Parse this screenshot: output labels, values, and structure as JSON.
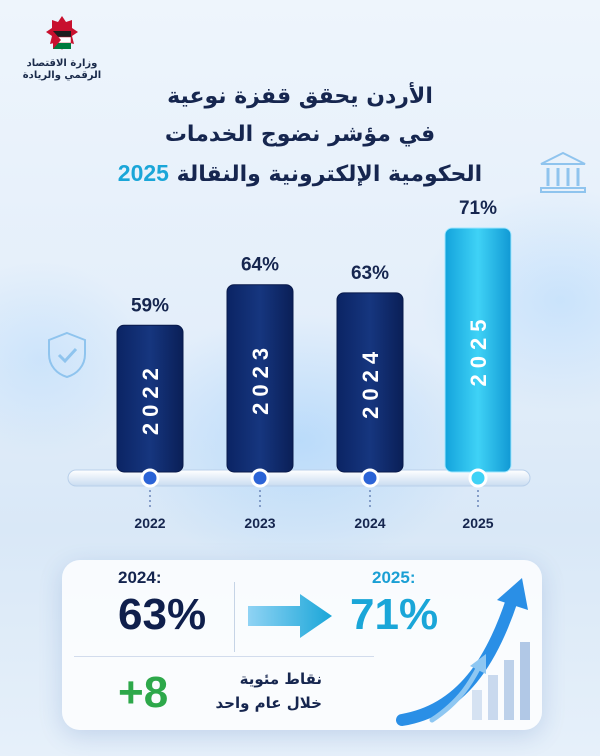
{
  "org": {
    "name_line1": "وزارة الاقتصاد",
    "name_line2": "الرقمي والريادة"
  },
  "title": {
    "line1": "الأردن يحقق قفزة نوعية",
    "line2": "في مؤشر نضوج الخدمات",
    "line3_text": "الحكومية الإلكترونية والنقالة",
    "line3_year": "2025"
  },
  "chart_data": {
    "type": "bar",
    "categories": [
      "2022",
      "2023",
      "2024",
      "2025"
    ],
    "values": [
      59,
      64,
      63,
      71
    ],
    "value_labels": [
      "59%",
      "64%",
      "63%",
      "71%"
    ],
    "bar_labels": [
      "2022",
      "2023",
      "2024",
      "2025"
    ],
    "highlight_category": "2025",
    "colors": {
      "bar": "#0e2a6b",
      "highlight": "#1fb8e8",
      "label": "#16264f"
    }
  },
  "summary": {
    "from_label": "2024:",
    "from_value": "63%",
    "to_label": "2025:",
    "to_value": "71%",
    "delta": "+8",
    "delta_text_line1": "نقاط مئوية",
    "delta_text_line2": "خلال عام واحد"
  },
  "icons": [
    "ministry-logo-icon",
    "shield-check-icon",
    "bank-building-icon",
    "arrow-right-icon",
    "growth-arrow-icon"
  ]
}
